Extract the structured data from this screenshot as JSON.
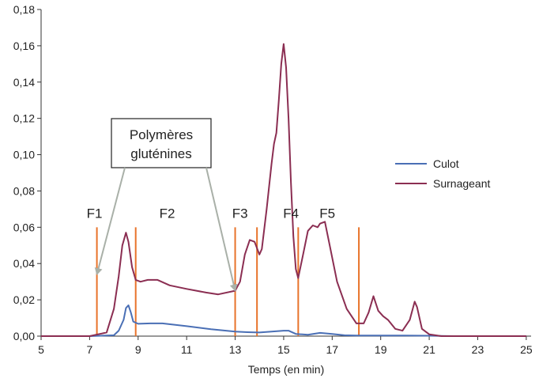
{
  "chart_data": {
    "type": "line",
    "title": "",
    "xlabel": "Temps (en min)",
    "ylabel": "",
    "xlim": [
      5,
      25.2
    ],
    "ylim": [
      0,
      0.18
    ],
    "xticks": [
      5,
      7,
      9,
      11,
      13,
      15,
      17,
      19,
      21,
      23,
      25
    ],
    "yticks": [
      0,
      0.02,
      0.04,
      0.06,
      0.08,
      0.1,
      0.12,
      0.14,
      0.16,
      0.18
    ],
    "ytick_labels": [
      "0,00",
      "0,02",
      "0,04",
      "0,06",
      "0,08",
      "0,10",
      "0,12",
      "0,14",
      "0,16",
      "0,18"
    ],
    "grid": false,
    "legend_position": "right",
    "colors": {
      "Culot": "#4a6fb5",
      "Surnageant": "#8b2e52",
      "fraction_lines": "#e8732a",
      "arrows": "#a9b0a8"
    },
    "series": [
      {
        "name": "Culot",
        "x": [
          5,
          7,
          8,
          8.2,
          8.4,
          8.5,
          8.6,
          8.7,
          8.8,
          9,
          9.5,
          10,
          11,
          12,
          13,
          13.5,
          14,
          14.5,
          15,
          15.2,
          15.5,
          16,
          16.5,
          17,
          17.5,
          18,
          19,
          20,
          21,
          22,
          25
        ],
        "y": [
          0,
          0,
          0.0005,
          0.003,
          0.009,
          0.0155,
          0.017,
          0.013,
          0.008,
          0.0068,
          0.007,
          0.007,
          0.0055,
          0.0038,
          0.0025,
          0.0022,
          0.002,
          0.0025,
          0.003,
          0.003,
          0.0012,
          0.0008,
          0.0018,
          0.0012,
          0.0005,
          0.0003,
          0.0003,
          0.0003,
          0.0002,
          0,
          0
        ]
      },
      {
        "name": "Surnageant",
        "x": [
          5,
          7,
          7.7,
          8,
          8.2,
          8.35,
          8.5,
          8.6,
          8.75,
          8.9,
          9.1,
          9.4,
          9.8,
          10.3,
          11,
          11.8,
          12.3,
          13,
          13.2,
          13.4,
          13.6,
          13.8,
          14,
          14.1,
          14.3,
          14.5,
          14.6,
          14.7,
          14.8,
          14.9,
          15,
          15.1,
          15.2,
          15.3,
          15.4,
          15.5,
          15.6,
          15.8,
          16,
          16.2,
          16.4,
          16.5,
          16.7,
          16.9,
          17.2,
          17.6,
          18,
          18.3,
          18.5,
          18.7,
          18.9,
          19.1,
          19.3,
          19.6,
          19.9,
          20.2,
          20.4,
          20.5,
          20.7,
          21,
          21.5,
          22,
          25
        ],
        "y": [
          0,
          0,
          0.002,
          0.015,
          0.033,
          0.05,
          0.057,
          0.052,
          0.038,
          0.031,
          0.03,
          0.031,
          0.031,
          0.028,
          0.026,
          0.024,
          0.023,
          0.025,
          0.03,
          0.045,
          0.053,
          0.052,
          0.045,
          0.048,
          0.07,
          0.095,
          0.106,
          0.112,
          0.13,
          0.15,
          0.161,
          0.148,
          0.12,
          0.085,
          0.055,
          0.037,
          0.032,
          0.045,
          0.058,
          0.061,
          0.06,
          0.062,
          0.063,
          0.05,
          0.03,
          0.015,
          0.007,
          0.007,
          0.013,
          0.022,
          0.014,
          0.011,
          0.009,
          0.004,
          0.003,
          0.009,
          0.019,
          0.016,
          0.004,
          0.001,
          0,
          0,
          0
        ]
      }
    ],
    "fraction_lines_x": [
      7.3,
      8.9,
      13,
      13.9,
      15.6,
      18.1
    ],
    "fraction_labels": [
      {
        "text": "F1",
        "x": 7.2
      },
      {
        "text": "F2",
        "x": 10.2
      },
      {
        "text": "F3",
        "x": 13.2
      },
      {
        "text": "F4",
        "x": 15.3
      },
      {
        "text": "F5",
        "x": 16.8
      }
    ],
    "annotation": {
      "lines": [
        "Polymères",
        "gluténines"
      ],
      "arrow_targets": [
        {
          "x": 7.3,
          "y": 0.034
        },
        {
          "x": 13.0,
          "y": 0.025
        }
      ]
    }
  }
}
